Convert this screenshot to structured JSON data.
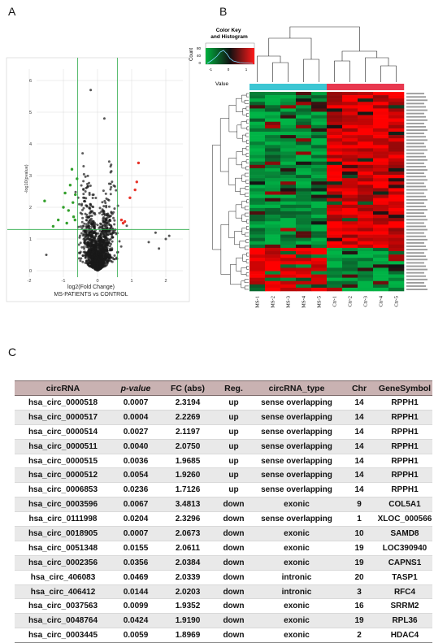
{
  "panels": {
    "a": "A",
    "b": "B",
    "c": "C"
  },
  "volcano": {
    "xlabel": "log2(Fold Change)",
    "ylabel": "-log10(pvalue)",
    "subtitle": "MS-PATIENTS vs CONTROL",
    "xticks": [
      "-2",
      "-1",
      "0",
      "1",
      "2"
    ],
    "yticks": [
      "0",
      "1",
      "2",
      "3",
      "4",
      "5",
      "6"
    ],
    "colors": {
      "up": "#e8342a",
      "down": "#33a02c",
      "ns": "#1a1a1a",
      "threshold": "#27a844"
    }
  },
  "heatmap": {
    "color_key_title": "Color Key\nand Histogram",
    "count_label": "Count",
    "count_ticks": [
      "0",
      "40",
      "80"
    ],
    "key_ticks": [
      "-1",
      "0",
      "1"
    ],
    "value_label": "Value",
    "samples": [
      "MS-1",
      "MS-2",
      "MS-3",
      "MS-4",
      "MS-5",
      "Ctr-1",
      "Ctr-2",
      "Ctr-3",
      "Ctr-4",
      "Ctr-5"
    ],
    "group_colors": {
      "ms": "#3cc6d3",
      "ctr": "#e8384f"
    }
  },
  "chart_data": {
    "type": "table",
    "columns": [
      "circRNA",
      "p-value",
      "FC (abs)",
      "Reg.",
      "circRNA_type",
      "Chr",
      "GeneSymbol"
    ],
    "rows": [
      [
        "hsa_circ_0000518",
        "0.0007",
        "2.3194",
        "up",
        "sense overlapping",
        "14",
        "RPPH1"
      ],
      [
        "hsa_circ_0000517",
        "0.0004",
        "2.2269",
        "up",
        "sense overlapping",
        "14",
        "RPPH1"
      ],
      [
        "hsa_circ_0000514",
        "0.0027",
        "2.1197",
        "up",
        "sense overlapping",
        "14",
        "RPPH1"
      ],
      [
        "hsa_circ_0000511",
        "0.0040",
        "2.0750",
        "up",
        "sense overlapping",
        "14",
        "RPPH1"
      ],
      [
        "hsa_circ_0000515",
        "0.0036",
        "1.9685",
        "up",
        "sense overlapping",
        "14",
        "RPPH1"
      ],
      [
        "hsa_circ_0000512",
        "0.0054",
        "1.9260",
        "up",
        "sense overlapping",
        "14",
        "RPPH1"
      ],
      [
        "hsa_circ_0006853",
        "0.0236",
        "1.7126",
        "up",
        "sense overlapping",
        "14",
        "RPPH1"
      ],
      [
        "hsa_circ_0003596",
        "0.0067",
        "3.4813",
        "down",
        "exonic",
        "9",
        "COL5A1"
      ],
      [
        "hsa_circ_0111998",
        "0.0204",
        "2.3296",
        "down",
        "sense overlapping",
        "1",
        "XLOC_000566"
      ],
      [
        "hsa_circ_0018905",
        "0.0007",
        "2.0673",
        "down",
        "exonic",
        "10",
        "SAMD8"
      ],
      [
        "hsa_circ_0051348",
        "0.0155",
        "2.0611",
        "down",
        "exonic",
        "19",
        "LOC390940"
      ],
      [
        "hsa_circ_0002356",
        "0.0356",
        "2.0384",
        "down",
        "exonic",
        "19",
        "CAPNS1"
      ],
      [
        "hsa_circ_406083",
        "0.0469",
        "2.0339",
        "down",
        "intronic",
        "20",
        "TASP1"
      ],
      [
        "hsa_circ_406412",
        "0.0144",
        "2.0203",
        "down",
        "intronic",
        "3",
        "RFC4"
      ],
      [
        "hsa_circ_0037563",
        "0.0099",
        "1.9352",
        "down",
        "exonic",
        "16",
        "SRRM2"
      ],
      [
        "hsa_circ_0048764",
        "0.0424",
        "1.9190",
        "down",
        "exonic",
        "19",
        "RPL36"
      ],
      [
        "hsa_circ_0003445",
        "0.0059",
        "1.8969",
        "down",
        "exonic",
        "2",
        "HDAC4"
      ]
    ]
  }
}
